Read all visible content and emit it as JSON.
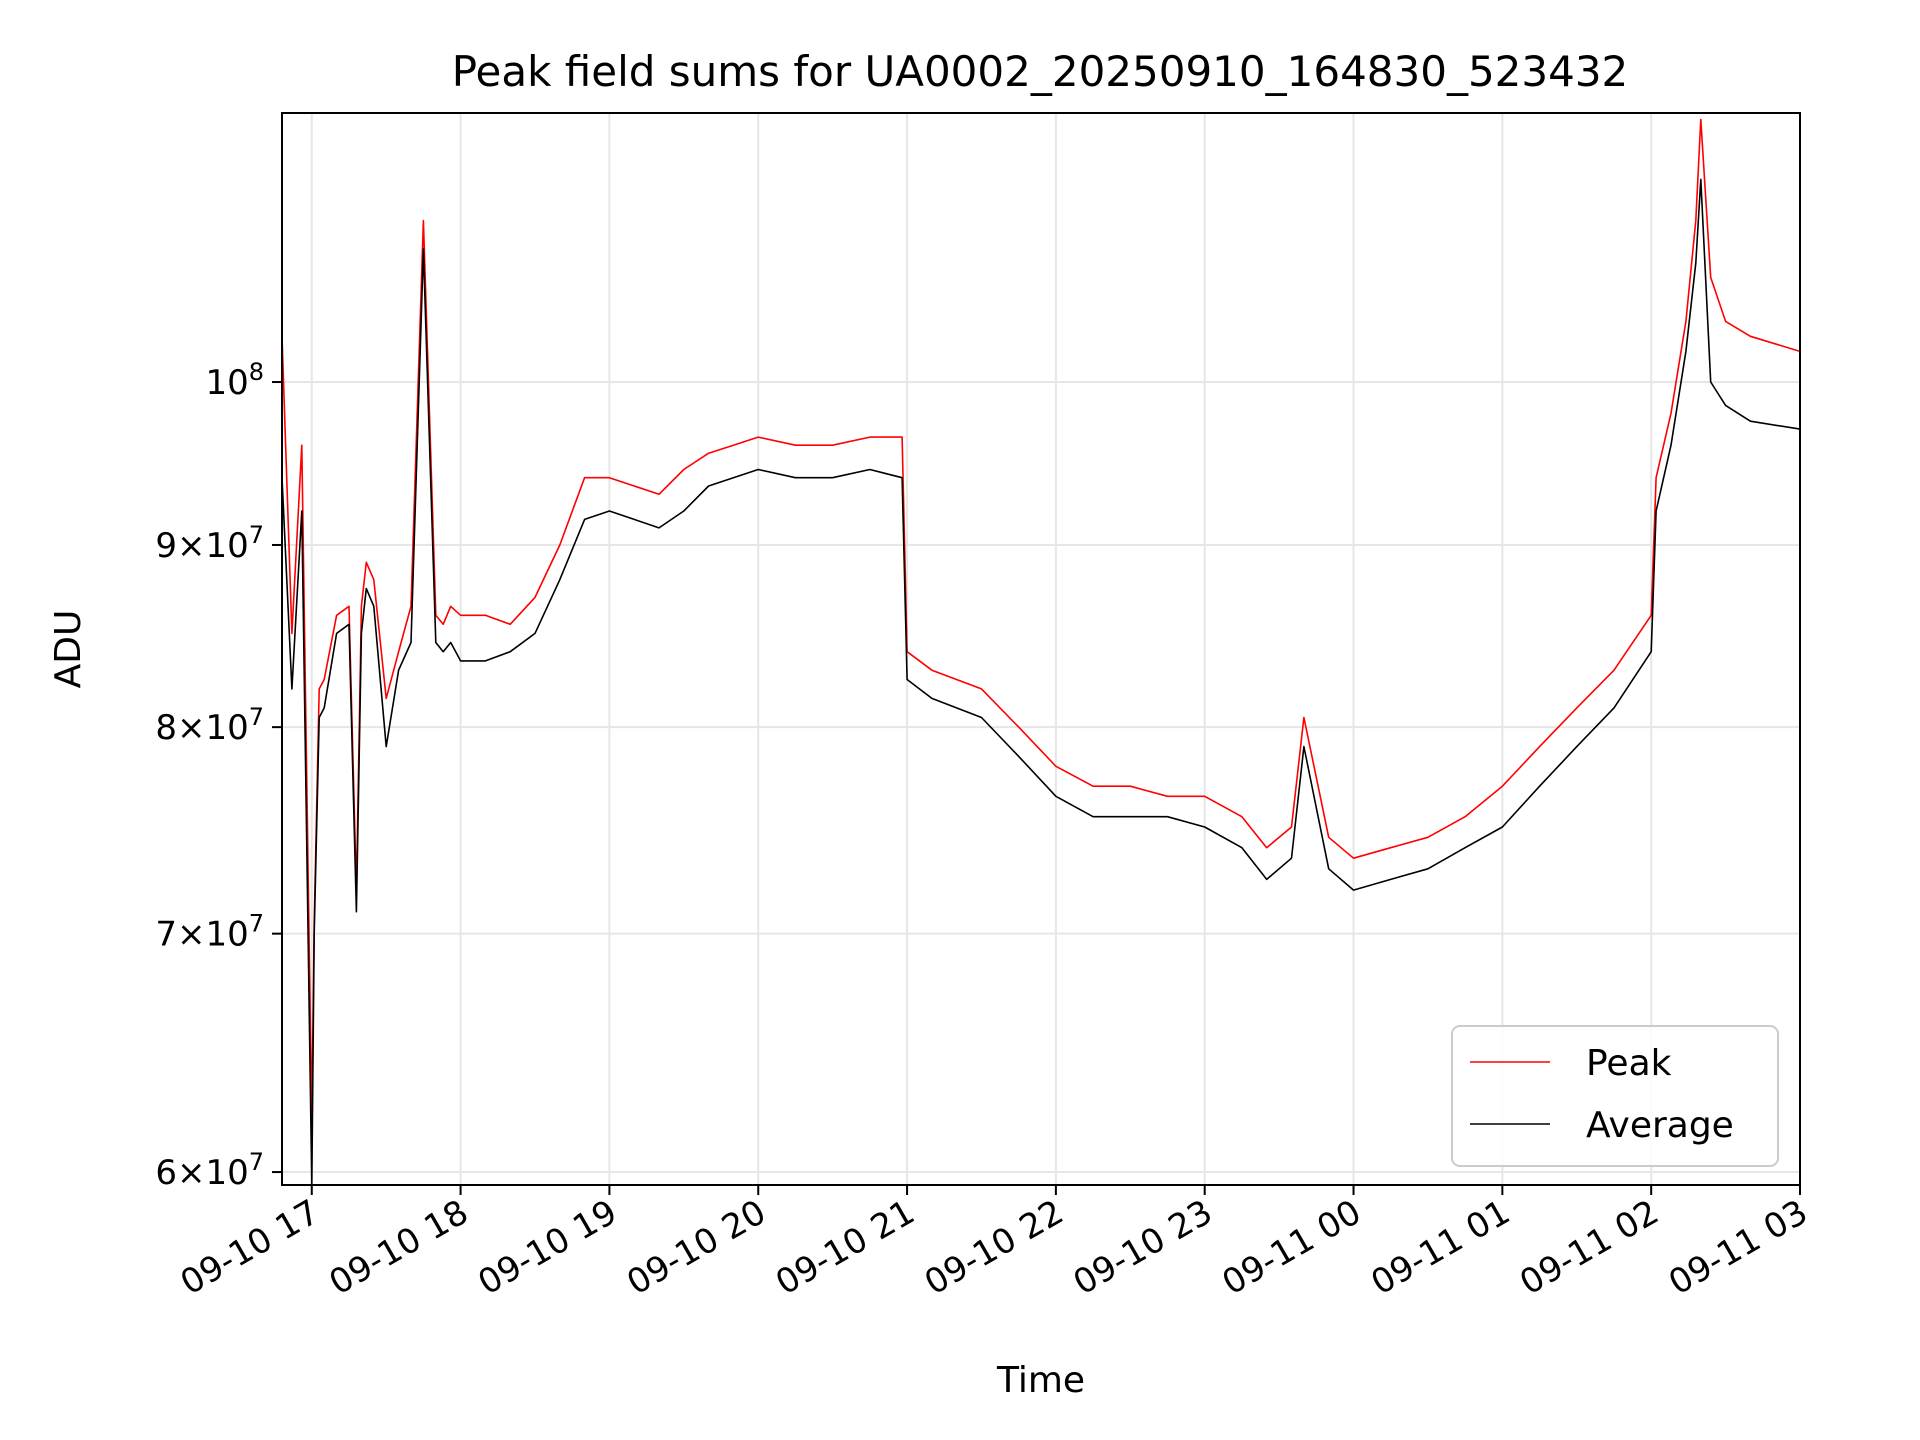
{
  "chart_data": {
    "type": "line",
    "title": "Peak field sums for UA0002_20250910_164830_523432",
    "xlabel": "Time",
    "ylabel": "ADU",
    "x_range": [
      "2025-09-10 16:48",
      "2025-09-11 03:00"
    ],
    "ylim": [
      59500000,
      119000000
    ],
    "yscale": "log",
    "grid": true,
    "legend_position": "lower-right",
    "x_ticks": [
      {
        "x": "2025-09-10 17:00",
        "label": "09-10 17"
      },
      {
        "x": "2025-09-10 18:00",
        "label": "09-10 18"
      },
      {
        "x": "2025-09-10 19:00",
        "label": "09-10 19"
      },
      {
        "x": "2025-09-10 20:00",
        "label": "09-10 20"
      },
      {
        "x": "2025-09-10 21:00",
        "label": "09-10 21"
      },
      {
        "x": "2025-09-10 22:00",
        "label": "09-10 22"
      },
      {
        "x": "2025-09-10 23:00",
        "label": "09-10 23"
      },
      {
        "x": "2025-09-11 00:00",
        "label": "09-11 00"
      },
      {
        "x": "2025-09-11 01:00",
        "label": "09-11 01"
      },
      {
        "x": "2025-09-11 02:00",
        "label": "09-11 02"
      },
      {
        "x": "2025-09-11 03:00",
        "label": "09-11 03"
      }
    ],
    "y_ticks": [
      {
        "value": 60000000,
        "base": "6",
        "exp": "7"
      },
      {
        "value": 70000000,
        "base": "7",
        "exp": "7"
      },
      {
        "value": 80000000,
        "base": "8",
        "exp": "7"
      },
      {
        "value": 90000000,
        "base": "9",
        "exp": "7"
      },
      {
        "value": 100000000,
        "base": "",
        "exp": "8"
      }
    ],
    "series": [
      {
        "name": "Peak",
        "color": "#ff0000",
        "x": [
          "2025-09-10 16:48",
          "2025-09-10 16:52",
          "2025-09-10 16:56",
          "2025-09-10 17:00",
          "2025-09-10 17:01",
          "2025-09-10 17:03",
          "2025-09-10 17:05",
          "2025-09-10 17:10",
          "2025-09-10 17:15",
          "2025-09-10 17:18",
          "2025-09-10 17:20",
          "2025-09-10 17:22",
          "2025-09-10 17:25",
          "2025-09-10 17:30",
          "2025-09-10 17:35",
          "2025-09-10 17:40",
          "2025-09-10 17:45",
          "2025-09-10 17:50",
          "2025-09-10 17:53",
          "2025-09-10 17:56",
          "2025-09-10 18:00",
          "2025-09-10 18:10",
          "2025-09-10 18:20",
          "2025-09-10 18:30",
          "2025-09-10 18:40",
          "2025-09-10 18:50",
          "2025-09-10 19:00",
          "2025-09-10 19:10",
          "2025-09-10 19:20",
          "2025-09-10 19:30",
          "2025-09-10 19:40",
          "2025-09-10 19:50",
          "2025-09-10 20:00",
          "2025-09-10 20:15",
          "2025-09-10 20:30",
          "2025-09-10 20:45",
          "2025-09-10 20:58",
          "2025-09-10 21:00",
          "2025-09-10 21:10",
          "2025-09-10 21:30",
          "2025-09-10 21:45",
          "2025-09-10 22:00",
          "2025-09-10 22:15",
          "2025-09-10 22:30",
          "2025-09-10 22:45",
          "2025-09-10 23:00",
          "2025-09-10 23:15",
          "2025-09-10 23:25",
          "2025-09-10 23:35",
          "2025-09-10 23:40",
          "2025-09-10 23:50",
          "2025-09-11 00:00",
          "2025-09-11 00:15",
          "2025-09-11 00:30",
          "2025-09-11 00:45",
          "2025-09-11 01:00",
          "2025-09-11 01:15",
          "2025-09-11 01:30",
          "2025-09-11 01:45",
          "2025-09-11 02:00",
          "2025-09-11 02:02",
          "2025-09-11 02:08",
          "2025-09-11 02:14",
          "2025-09-11 02:18",
          "2025-09-11 02:20",
          "2025-09-11 02:24",
          "2025-09-11 02:30",
          "2025-09-11 02:40",
          "2025-09-11 03:00"
        ],
        "y": [
          103000000,
          85000000,
          96000000,
          62000000,
          70500000,
          82000000,
          82500000,
          86000000,
          86500000,
          72000000,
          86500000,
          89000000,
          88000000,
          81500000,
          84000000,
          86500000,
          111000000,
          86000000,
          85500000,
          86500000,
          86000000,
          86000000,
          85500000,
          87000000,
          90000000,
          94000000,
          94000000,
          93500000,
          93000000,
          94500000,
          95500000,
          96000000,
          96500000,
          96000000,
          96000000,
          96500000,
          96500000,
          84000000,
          83000000,
          82000000,
          80000000,
          78000000,
          77000000,
          77000000,
          76500000,
          76500000,
          75500000,
          74000000,
          75000000,
          80500000,
          74500000,
          73500000,
          74000000,
          74500000,
          75500000,
          77000000,
          79000000,
          81000000,
          83000000,
          86000000,
          94000000,
          98000000,
          104000000,
          111000000,
          118500000,
          107000000,
          104000000,
          103000000,
          102000000
        ]
      },
      {
        "name": "Average",
        "color": "#000000",
        "x": [
          "2025-09-10 16:48",
          "2025-09-10 16:52",
          "2025-09-10 16:56",
          "2025-09-10 17:00",
          "2025-09-10 17:01",
          "2025-09-10 17:03",
          "2025-09-10 17:05",
          "2025-09-10 17:10",
          "2025-09-10 17:15",
          "2025-09-10 17:18",
          "2025-09-10 17:20",
          "2025-09-10 17:22",
          "2025-09-10 17:25",
          "2025-09-10 17:30",
          "2025-09-10 17:35",
          "2025-09-10 17:40",
          "2025-09-10 17:45",
          "2025-09-10 17:50",
          "2025-09-10 17:53",
          "2025-09-10 17:56",
          "2025-09-10 18:00",
          "2025-09-10 18:10",
          "2025-09-10 18:20",
          "2025-09-10 18:30",
          "2025-09-10 18:40",
          "2025-09-10 18:50",
          "2025-09-10 19:00",
          "2025-09-10 19:10",
          "2025-09-10 19:20",
          "2025-09-10 19:30",
          "2025-09-10 19:40",
          "2025-09-10 19:50",
          "2025-09-10 20:00",
          "2025-09-10 20:15",
          "2025-09-10 20:30",
          "2025-09-10 20:45",
          "2025-09-10 20:58",
          "2025-09-10 21:00",
          "2025-09-10 21:10",
          "2025-09-10 21:30",
          "2025-09-10 21:45",
          "2025-09-10 22:00",
          "2025-09-10 22:15",
          "2025-09-10 22:30",
          "2025-09-10 22:45",
          "2025-09-10 23:00",
          "2025-09-10 23:15",
          "2025-09-10 23:25",
          "2025-09-10 23:35",
          "2025-09-10 23:40",
          "2025-09-10 23:50",
          "2025-09-11 00:00",
          "2025-09-11 00:15",
          "2025-09-11 00:30",
          "2025-09-11 00:45",
          "2025-09-11 01:00",
          "2025-09-11 01:15",
          "2025-09-11 01:30",
          "2025-09-11 01:45",
          "2025-09-11 02:00",
          "2025-09-11 02:02",
          "2025-09-11 02:08",
          "2025-09-11 02:14",
          "2025-09-11 02:18",
          "2025-09-11 02:20",
          "2025-09-11 02:24",
          "2025-09-11 02:30",
          "2025-09-11 02:40",
          "2025-09-11 03:00"
        ],
        "y": [
          94000000,
          82000000,
          92000000,
          59500000,
          70000000,
          80500000,
          81000000,
          85000000,
          85500000,
          71000000,
          85000000,
          87500000,
          86500000,
          79000000,
          83000000,
          84500000,
          109000000,
          84500000,
          84000000,
          84500000,
          83500000,
          83500000,
          84000000,
          85000000,
          88000000,
          91500000,
          92000000,
          91500000,
          91000000,
          92000000,
          93500000,
          94000000,
          94500000,
          94000000,
          94000000,
          94500000,
          94000000,
          82500000,
          81500000,
          80500000,
          78500000,
          76500000,
          75500000,
          75500000,
          75500000,
          75000000,
          74000000,
          72500000,
          73500000,
          79000000,
          73000000,
          72000000,
          72500000,
          73000000,
          74000000,
          75000000,
          77000000,
          79000000,
          81000000,
          84000000,
          92000000,
          96000000,
          102000000,
          108000000,
          114000000,
          100000000,
          98500000,
          97500000,
          97000000
        ]
      }
    ]
  }
}
